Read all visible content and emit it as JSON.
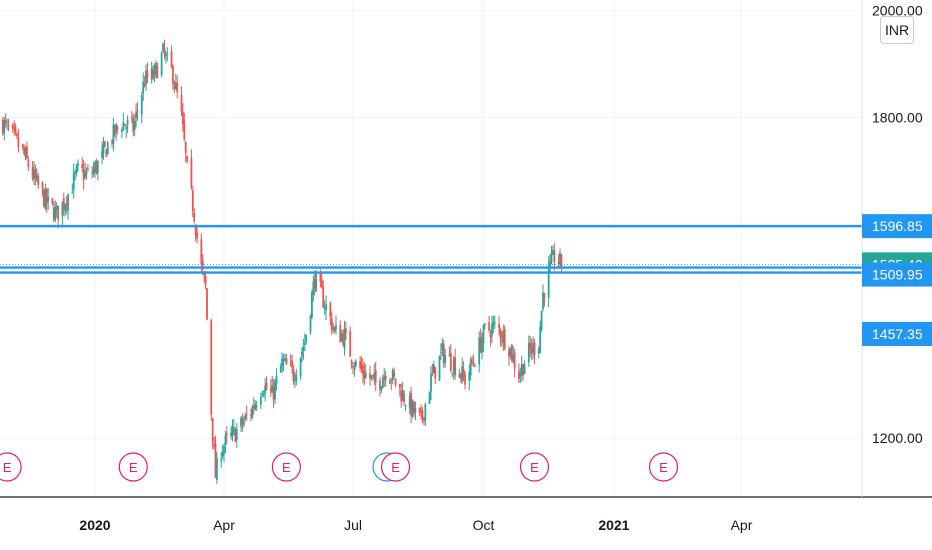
{
  "currency": "INR",
  "colors": {
    "up": "#26a69a",
    "down": "#ef5350",
    "level_line": "#2196f3",
    "grid": "#f0f3fa",
    "earnings": "#e91e63",
    "dividend": "#2196f3"
  },
  "chart_data": {
    "type": "candlestick",
    "price_axis": {
      "ticks": [
        "1200.00",
        "1800.00",
        "2000.00"
      ],
      "range": [
        1090,
        2020
      ]
    },
    "time_axis": {
      "labels": [
        {
          "text": "2020",
          "date": "2020-01-01",
          "year": true
        },
        {
          "text": "Apr",
          "date": "2020-04-01",
          "year": false
        },
        {
          "text": "Jul",
          "date": "2020-07-01",
          "year": false
        },
        {
          "text": "Oct",
          "date": "2020-10-01",
          "year": false
        },
        {
          "text": "2021",
          "date": "2021-01-01",
          "year": true
        },
        {
          "text": "Apr",
          "date": "2021-04-01",
          "year": false
        }
      ],
      "range": [
        "2019-10-26",
        "2021-06-25"
      ]
    },
    "horizontal_levels": [
      "1596.85",
      "1509.95"
    ],
    "last_price": "1525.40",
    "lower_label": "1457.35",
    "approximate_close_path": [
      [
        "2019-10-28",
        1790
      ],
      [
        "2019-11-05",
        1760
      ],
      [
        "2019-11-12",
        1730
      ],
      [
        "2019-11-20",
        1680
      ],
      [
        "2019-11-28",
        1640
      ],
      [
        "2019-12-05",
        1620
      ],
      [
        "2019-12-12",
        1650
      ],
      [
        "2019-12-20",
        1700
      ],
      [
        "2019-12-28",
        1690
      ],
      [
        "2020-01-05",
        1720
      ],
      [
        "2020-01-12",
        1760
      ],
      [
        "2020-01-20",
        1790
      ],
      [
        "2020-01-28",
        1780
      ],
      [
        "2020-02-05",
        1870
      ],
      [
        "2020-02-12",
        1880
      ],
      [
        "2020-02-18",
        1920
      ],
      [
        "2020-02-25",
        1880
      ],
      [
        "2020-03-02",
        1800
      ],
      [
        "2020-03-06",
        1700
      ],
      [
        "2020-03-11",
        1620
      ],
      [
        "2020-03-15",
        1530
      ],
      [
        "2020-03-19",
        1480
      ],
      [
        "2020-03-23",
        1250
      ],
      [
        "2020-03-26",
        1130
      ],
      [
        "2020-03-30",
        1180
      ],
      [
        "2020-04-05",
        1200
      ],
      [
        "2020-04-12",
        1220
      ],
      [
        "2020-04-20",
        1250
      ],
      [
        "2020-04-28",
        1300
      ],
      [
        "2020-05-05",
        1280
      ],
      [
        "2020-05-12",
        1340
      ],
      [
        "2020-05-20",
        1320
      ],
      [
        "2020-05-28",
        1380
      ],
      [
        "2020-06-04",
        1500
      ],
      [
        "2020-06-10",
        1460
      ],
      [
        "2020-06-18",
        1400
      ],
      [
        "2020-06-25",
        1390
      ],
      [
        "2020-07-02",
        1340
      ],
      [
        "2020-07-10",
        1320
      ],
      [
        "2020-07-18",
        1300
      ],
      [
        "2020-07-25",
        1330
      ],
      [
        "2020-08-03",
        1290
      ],
      [
        "2020-08-10",
        1260
      ],
      [
        "2020-08-18",
        1230
      ],
      [
        "2020-08-25",
        1310
      ],
      [
        "2020-09-02",
        1360
      ],
      [
        "2020-09-10",
        1340
      ],
      [
        "2020-09-18",
        1310
      ],
      [
        "2020-09-25",
        1350
      ],
      [
        "2020-10-02",
        1400
      ],
      [
        "2020-10-10",
        1410
      ],
      [
        "2020-10-18",
        1380
      ],
      [
        "2020-10-26",
        1320
      ],
      [
        "2020-11-02",
        1360
      ],
      [
        "2020-11-09",
        1380
      ],
      [
        "2020-11-12",
        1470
      ],
      [
        "2020-11-16",
        1510
      ],
      [
        "2020-11-20",
        1540
      ],
      [
        "2020-11-25",
        1525
      ]
    ]
  },
  "events": [
    {
      "letter": "E",
      "date": "2019-10-31",
      "kind": "earnings"
    },
    {
      "letter": "E",
      "date": "2020-01-28",
      "kind": "earnings"
    },
    {
      "letter": "E",
      "date": "2020-05-15",
      "kind": "earnings"
    },
    {
      "letter": "D",
      "date": "2020-07-25",
      "kind": "dividend"
    },
    {
      "letter": "E",
      "date": "2020-07-31",
      "kind": "earnings"
    },
    {
      "letter": "E",
      "date": "2020-11-06",
      "kind": "earnings"
    },
    {
      "letter": "E",
      "date": "2021-02-05",
      "kind": "earnings"
    }
  ]
}
